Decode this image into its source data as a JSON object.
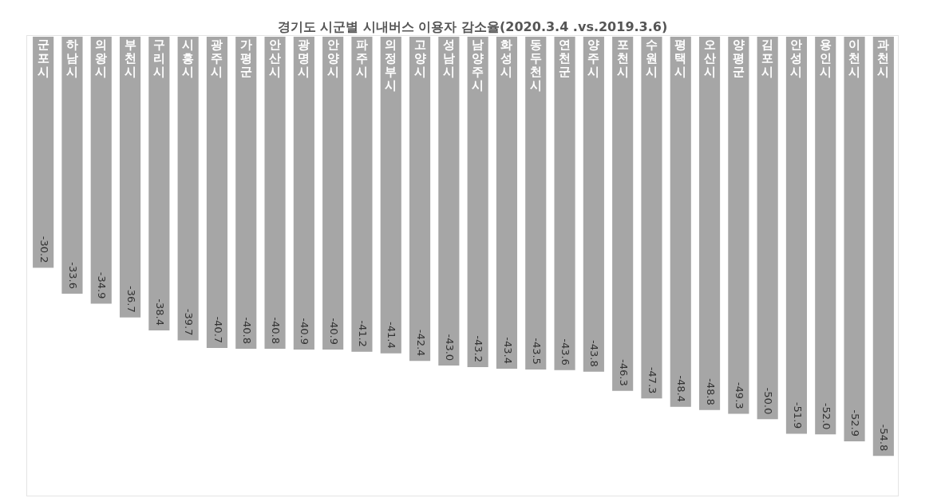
{
  "chart_data": {
    "type": "bar",
    "title": "경기도 시군별 시내버스 이용자 감소율(2020.3.4 .vs.2019.3.6)",
    "categories": [
      "군포시",
      "하남시",
      "의왕시",
      "부천시",
      "구리시",
      "시흥시",
      "광주시",
      "가평군",
      "안산시",
      "광명시",
      "안양시",
      "파주시",
      "의정부시",
      "고양시",
      "성남시",
      "남양주시",
      "화성시",
      "동두천시",
      "연천군",
      "양주시",
      "포천시",
      "수원시",
      "평택시",
      "오산시",
      "양평군",
      "김포시",
      "안성시",
      "용인시",
      "이천시",
      "과천시"
    ],
    "values": [
      -30.2,
      -33.6,
      -34.9,
      -36.7,
      -38.4,
      -39.7,
      -40.7,
      -40.8,
      -40.8,
      -40.9,
      -40.9,
      -41.2,
      -41.4,
      -42.4,
      -43.0,
      -43.2,
      -43.4,
      -43.5,
      -43.6,
      -43.8,
      -46.3,
      -47.3,
      -48.4,
      -48.8,
      -49.3,
      -50.0,
      -51.9,
      -52.0,
      -52.9,
      -54.8
    ],
    "value_labels": [
      "-30.2",
      "-33.6",
      "-34.9",
      "-36.7",
      "-38.4",
      "-39.7",
      "-40.7",
      "-40.8",
      "-40.8",
      "-40.9",
      "-40.9",
      "-41.2",
      "-41.4",
      "-42.4",
      "-43.0",
      "-43.2",
      "-43.4",
      "-43.5",
      "-43.6",
      "-43.8",
      "-46.3",
      "-47.3",
      "-48.4",
      "-48.8",
      "-49.3",
      "-50.0",
      "-51.9",
      "-52.0",
      "-52.9",
      "-54.8"
    ],
    "color": "#a6a6a6"
  }
}
